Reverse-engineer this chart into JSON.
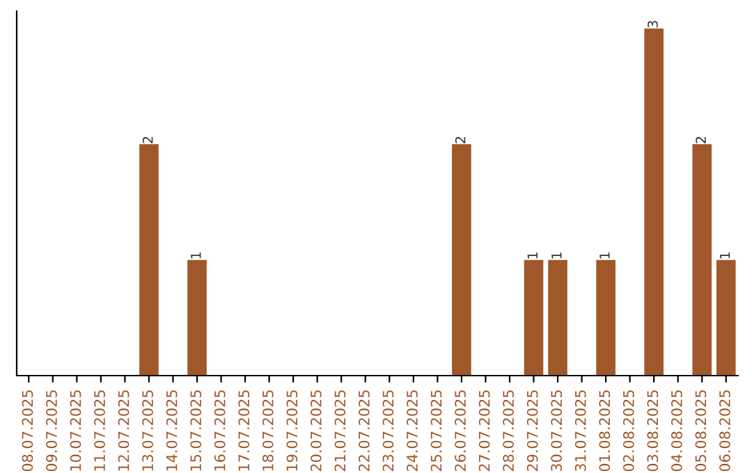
{
  "chart_data": {
    "type": "bar",
    "categories": [
      "08.07.2025",
      "09.07.2025",
      "10.07.2025",
      "11.07.2025",
      "12.07.2025",
      "13.07.2025",
      "14.07.2025",
      "15.07.2025",
      "16.07.2025",
      "17.07.2025",
      "18.07.2025",
      "19.07.2025",
      "20.07.2025",
      "21.07.2025",
      "22.07.2025",
      "23.07.2025",
      "24.07.2025",
      "25.07.2025",
      "26.07.2025",
      "27.07.2025",
      "28.07.2025",
      "29.07.2025",
      "30.07.2025",
      "31.07.2025",
      "01.08.2025",
      "02.08.2025",
      "03.08.2025",
      "04.08.2025",
      "05.08.2025",
      "06.08.2025"
    ],
    "values": [
      0,
      0,
      0,
      0,
      0,
      2,
      0,
      1,
      0,
      0,
      0,
      0,
      0,
      0,
      0,
      0,
      0,
      0,
      2,
      0,
      0,
      1,
      1,
      0,
      1,
      0,
      3,
      0,
      2,
      1
    ],
    "value_labels": [
      null,
      null,
      null,
      null,
      null,
      "2",
      null,
      "1",
      null,
      null,
      null,
      null,
      null,
      null,
      null,
      null,
      null,
      null,
      "2",
      null,
      null,
      "1",
      "1",
      null,
      "1",
      null,
      "3",
      null,
      "2",
      "1"
    ],
    "color": "#a0582a",
    "grid": false,
    "legend": false
  }
}
